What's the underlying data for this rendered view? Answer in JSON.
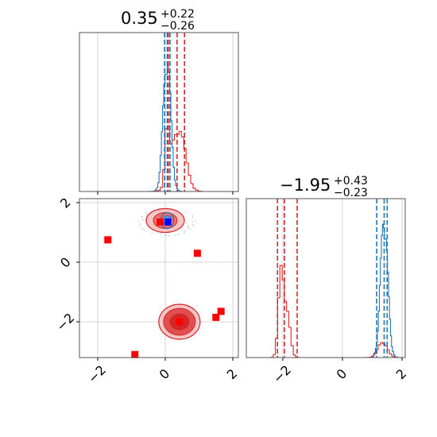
{
  "chart_data": {
    "type": "corner",
    "parameters": [
      "",
      ""
    ],
    "tick_values": [
      -2,
      0,
      2
    ],
    "tick_labels": [
      "−2",
      "0",
      "2"
    ],
    "xlim": [
      -2.5,
      2.1
    ],
    "ylim_param2": [
      -3.15,
      2.1
    ],
    "grid": true,
    "titles": [
      {
        "value": "0.35",
        "plus": "+0.22",
        "minus": "−0.26"
      },
      {
        "value": "−1.95",
        "plus": "+0.43",
        "minus": "−0.23"
      }
    ],
    "series": [
      {
        "color": "#1f77b4",
        "param1_quantiles": [
          -0.02,
          0.06,
          0.14
        ],
        "param2_quantiles": [
          1.15,
          1.4,
          1.5
        ],
        "param1_peak": 0.05,
        "param2_peak": 1.4
      },
      {
        "color": "#d62728",
        "param1_quantiles": [
          0.09,
          0.35,
          0.57
        ],
        "param2_quantiles": [
          -2.18,
          -1.95,
          -1.52
        ],
        "param2_secondary_peak": 1.35,
        "contour_centers": [
          [
            0.0,
            1.4
          ],
          [
            0.42,
            -2.0
          ]
        ]
      }
    ],
    "markers_red": [
      [
        -1.7,
        0.75
      ],
      [
        -0.15,
        1.35
      ],
      [
        0.95,
        0.3
      ],
      [
        0.42,
        -2.0
      ],
      [
        1.5,
        -1.85
      ],
      [
        1.65,
        -1.65
      ],
      [
        -0.9,
        -3.1
      ]
    ],
    "markers_blue": [
      [
        0.08,
        1.35
      ]
    ]
  }
}
